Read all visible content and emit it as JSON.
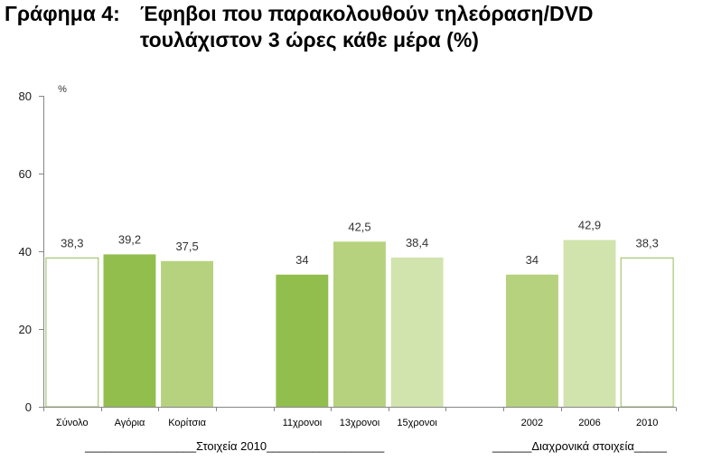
{
  "chart_data": {
    "type": "bar",
    "figure_label": "Γράφημα 4:",
    "title": "Έφηβοι που παρακολουθούν τηλεόραση/DVD\nτουλάχιστον 3 ώρες κάθε μέρα (%)",
    "ylabel": "%",
    "ylim": [
      0,
      80
    ],
    "yticks": [
      0,
      20,
      40,
      60,
      80
    ],
    "grid": false,
    "legend": "none",
    "categories": [
      "Σύνολο",
      "Αγόρια",
      "Κορίτσια",
      "",
      "11χρονοι",
      "13χρονοι",
      "15χρονοι",
      "",
      "2002",
      "2006",
      "2010"
    ],
    "values": [
      38.3,
      39.2,
      37.5,
      null,
      34,
      42.5,
      38.4,
      null,
      34,
      42.9,
      38.3
    ],
    "value_labels": [
      "38,3",
      "39,2",
      "37,5",
      "",
      "34",
      "42,5",
      "38,4",
      "",
      "34",
      "42,9",
      "38,3"
    ],
    "groups": [
      {
        "label": "_________________Στοιχεία 2010__________________",
        "from_index": 0,
        "to_index": 6
      },
      {
        "label": "______Διαχρονικά στοιχεία_____",
        "from_index": 8,
        "to_index": 10
      }
    ],
    "bar_colors": [
      "#FFFFFF",
      "#92BE4E",
      "#B6D27E",
      null,
      "#92BE4E",
      "#B6D27E",
      "#D1E4AD",
      null,
      "#B6D27E",
      "#D1E4AD",
      "#FFFFFF"
    ],
    "bar_edge_colors": [
      "#93BD55",
      null,
      null,
      null,
      null,
      null,
      null,
      null,
      null,
      null,
      "#93BD55"
    ]
  },
  "colors": {
    "axis": "#868686",
    "title": "#000000"
  }
}
